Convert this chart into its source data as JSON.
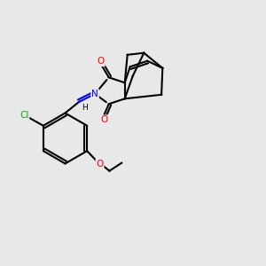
{
  "bg_color": "#e8e8e8",
  "bond_color": "#000000",
  "bond_width": 1.5,
  "atom_colors": {
    "O": "#ff0000",
    "N": "#0000ff",
    "Cl": "#00aa00",
    "C": "#000000",
    "H": "#000000"
  },
  "figsize": [
    3.0,
    3.0
  ],
  "dpi": 100,
  "xlim": [
    0,
    10
  ],
  "ylim": [
    0,
    10
  ]
}
